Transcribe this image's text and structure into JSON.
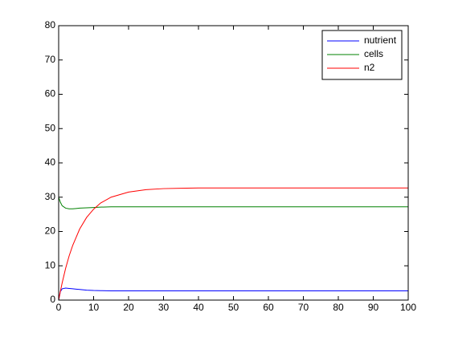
{
  "chart_data": {
    "type": "line",
    "x": [
      0,
      0.5,
      1,
      2,
      3,
      4,
      5,
      6,
      8,
      10,
      12,
      15,
      20,
      25,
      30,
      35,
      40,
      50,
      60,
      70,
      80,
      90,
      100
    ],
    "series": [
      {
        "name": "nutrient",
        "color": "#0000ff",
        "values": [
          0,
          2.5,
          3.3,
          3.5,
          3.4,
          3.3,
          3.2,
          3.1,
          2.9,
          2.8,
          2.75,
          2.7,
          2.7,
          2.7,
          2.7,
          2.7,
          2.7,
          2.7,
          2.7,
          2.7,
          2.7,
          2.7,
          2.7
        ]
      },
      {
        "name": "cells",
        "color": "#008000",
        "values": [
          30,
          28.5,
          27.5,
          26.8,
          26.6,
          26.6,
          26.7,
          26.8,
          26.9,
          27.0,
          27.1,
          27.2,
          27.2,
          27.2,
          27.2,
          27.2,
          27.2,
          27.2,
          27.2,
          27.2,
          27.2,
          27.2,
          27.2
        ]
      },
      {
        "name": "n2",
        "color": "#ff0000",
        "values": [
          0,
          2.6,
          5.0,
          9.3,
          12.9,
          15.9,
          18.3,
          20.7,
          24.1,
          26.5,
          28.3,
          30.0,
          31.5,
          32.2,
          32.5,
          32.6,
          32.7,
          32.7,
          32.7,
          32.7,
          32.7,
          32.7,
          32.7
        ]
      }
    ],
    "xlim": [
      0,
      100
    ],
    "ylim": [
      0,
      80
    ],
    "xticks": [
      0,
      10,
      20,
      30,
      40,
      50,
      60,
      70,
      80,
      90,
      100
    ],
    "yticks": [
      0,
      10,
      20,
      30,
      40,
      50,
      60,
      70,
      80
    ],
    "legend": "northeast"
  }
}
